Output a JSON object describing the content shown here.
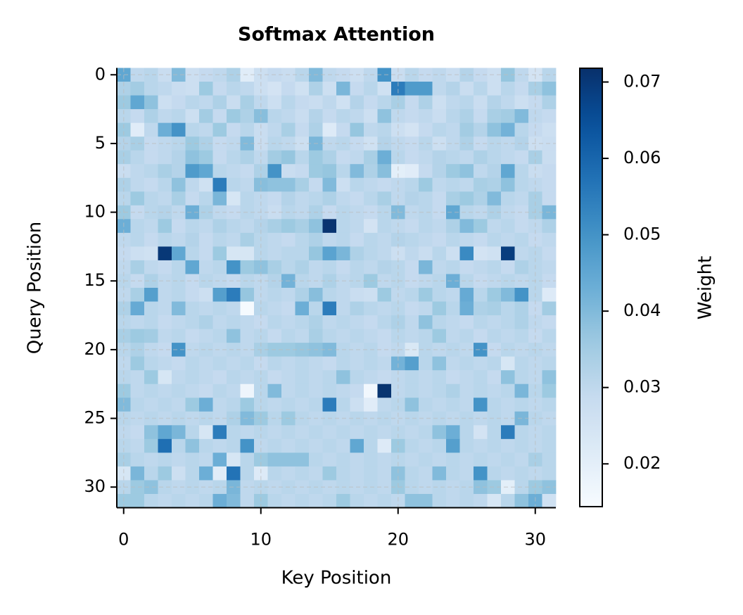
{
  "chart_data": {
    "type": "heatmap",
    "title": "Softmax Attention",
    "x_label": "Key Position",
    "y_label": "Query Position",
    "colorbar_label": "Weight",
    "colormap": "Blues",
    "xlim": [
      -0.5,
      31.5
    ],
    "ylim": [
      31.5,
      -0.5
    ],
    "xticks": [
      0,
      10,
      20,
      30
    ],
    "yticks": [
      0,
      5,
      10,
      15,
      20,
      25,
      30
    ],
    "clim": [
      0.0144,
      0.0718
    ],
    "cticks": [
      0.02,
      0.03,
      0.04,
      0.05,
      0.06,
      0.07
    ],
    "grid": true,
    "z": [
      [
        0.045,
        0.03,
        0.031,
        0.028,
        0.04,
        0.027,
        0.029,
        0.03,
        0.033,
        0.021,
        0.027,
        0.029,
        0.028,
        0.031,
        0.04,
        0.03,
        0.029,
        0.027,
        0.03,
        0.05,
        0.028,
        0.031,
        0.029,
        0.03,
        0.028,
        0.032,
        0.029,
        0.027,
        0.037,
        0.03,
        0.025,
        0.031
      ],
      [
        0.033,
        0.035,
        0.031,
        0.03,
        0.028,
        0.027,
        0.036,
        0.029,
        0.031,
        0.03,
        0.027,
        0.025,
        0.029,
        0.026,
        0.033,
        0.027,
        0.041,
        0.029,
        0.031,
        0.026,
        0.055,
        0.048,
        0.048,
        0.03,
        0.032,
        0.028,
        0.031,
        0.027,
        0.031,
        0.029,
        0.034,
        0.038
      ],
      [
        0.036,
        0.045,
        0.038,
        0.027,
        0.029,
        0.031,
        0.03,
        0.033,
        0.028,
        0.034,
        0.03,
        0.027,
        0.031,
        0.029,
        0.028,
        0.03,
        0.026,
        0.032,
        0.029,
        0.031,
        0.034,
        0.029,
        0.033,
        0.027,
        0.03,
        0.031,
        0.028,
        0.032,
        0.03,
        0.027,
        0.029,
        0.033
      ],
      [
        0.031,
        0.029,
        0.033,
        0.03,
        0.031,
        0.027,
        0.035,
        0.029,
        0.036,
        0.033,
        0.039,
        0.031,
        0.03,
        0.028,
        0.032,
        0.029,
        0.031,
        0.03,
        0.027,
        0.038,
        0.03,
        0.029,
        0.03,
        0.028,
        0.031,
        0.033,
        0.029,
        0.034,
        0.035,
        0.04,
        0.03,
        0.029
      ],
      [
        0.036,
        0.021,
        0.03,
        0.043,
        0.05,
        0.031,
        0.03,
        0.036,
        0.029,
        0.031,
        0.028,
        0.03,
        0.034,
        0.029,
        0.033,
        0.022,
        0.029,
        0.037,
        0.03,
        0.031,
        0.027,
        0.025,
        0.029,
        0.031,
        0.03,
        0.035,
        0.032,
        0.038,
        0.042,
        0.031,
        0.029,
        0.027
      ],
      [
        0.032,
        0.034,
        0.029,
        0.03,
        0.031,
        0.036,
        0.033,
        0.029,
        0.03,
        0.04,
        0.028,
        0.031,
        0.03,
        0.027,
        0.041,
        0.03,
        0.031,
        0.029,
        0.026,
        0.032,
        0.03,
        0.029,
        0.031,
        0.027,
        0.03,
        0.033,
        0.029,
        0.031,
        0.03,
        0.032,
        0.027,
        0.028
      ],
      [
        0.034,
        0.031,
        0.029,
        0.03,
        0.032,
        0.038,
        0.036,
        0.029,
        0.031,
        0.033,
        0.03,
        0.035,
        0.037,
        0.031,
        0.036,
        0.033,
        0.029,
        0.03,
        0.034,
        0.043,
        0.031,
        0.029,
        0.03,
        0.032,
        0.031,
        0.03,
        0.033,
        0.031,
        0.03,
        0.029,
        0.034,
        0.028
      ],
      [
        0.028,
        0.03,
        0.031,
        0.034,
        0.032,
        0.048,
        0.045,
        0.031,
        0.03,
        0.029,
        0.033,
        0.05,
        0.028,
        0.029,
        0.036,
        0.037,
        0.031,
        0.04,
        0.033,
        0.039,
        0.02,
        0.021,
        0.029,
        0.032,
        0.036,
        0.038,
        0.03,
        0.032,
        0.045,
        0.031,
        0.028,
        0.029
      ],
      [
        0.033,
        0.03,
        0.029,
        0.031,
        0.038,
        0.03,
        0.026,
        0.055,
        0.031,
        0.03,
        0.039,
        0.038,
        0.038,
        0.034,
        0.029,
        0.04,
        0.027,
        0.031,
        0.03,
        0.029,
        0.03,
        0.031,
        0.036,
        0.03,
        0.031,
        0.03,
        0.034,
        0.033,
        0.038,
        0.031,
        0.03,
        0.029
      ],
      [
        0.031,
        0.036,
        0.031,
        0.03,
        0.034,
        0.029,
        0.031,
        0.041,
        0.024,
        0.031,
        0.03,
        0.029,
        0.032,
        0.03,
        0.031,
        0.033,
        0.03,
        0.029,
        0.031,
        0.034,
        0.03,
        0.032,
        0.031,
        0.029,
        0.034,
        0.036,
        0.033,
        0.04,
        0.031,
        0.03,
        0.034,
        0.029
      ],
      [
        0.036,
        0.029,
        0.031,
        0.032,
        0.03,
        0.043,
        0.033,
        0.03,
        0.029,
        0.031,
        0.03,
        0.028,
        0.031,
        0.03,
        0.033,
        0.029,
        0.031,
        0.03,
        0.029,
        0.031,
        0.04,
        0.03,
        0.031,
        0.029,
        0.045,
        0.031,
        0.03,
        0.033,
        0.03,
        0.029,
        0.034,
        0.041
      ],
      [
        0.043,
        0.031,
        0.03,
        0.036,
        0.029,
        0.031,
        0.03,
        0.033,
        0.031,
        0.03,
        0.032,
        0.034,
        0.036,
        0.034,
        0.038,
        0.071,
        0.031,
        0.03,
        0.025,
        0.031,
        0.03,
        0.029,
        0.031,
        0.03,
        0.033,
        0.04,
        0.036,
        0.03,
        0.031,
        0.029,
        0.03,
        0.033
      ],
      [
        0.03,
        0.031,
        0.029,
        0.031,
        0.03,
        0.032,
        0.029,
        0.031,
        0.03,
        0.034,
        0.031,
        0.03,
        0.029,
        0.031,
        0.033,
        0.03,
        0.031,
        0.029,
        0.031,
        0.03,
        0.032,
        0.031,
        0.03,
        0.029,
        0.031,
        0.03,
        0.029,
        0.031,
        0.03,
        0.031,
        0.029,
        0.03
      ],
      [
        0.029,
        0.027,
        0.026,
        0.07,
        0.045,
        0.031,
        0.029,
        0.036,
        0.024,
        0.024,
        0.031,
        0.03,
        0.031,
        0.031,
        0.037,
        0.046,
        0.041,
        0.033,
        0.031,
        0.03,
        0.027,
        0.03,
        0.028,
        0.031,
        0.027,
        0.052,
        0.025,
        0.026,
        0.069,
        0.03,
        0.031,
        0.029
      ],
      [
        0.03,
        0.034,
        0.03,
        0.029,
        0.031,
        0.045,
        0.03,
        0.031,
        0.05,
        0.036,
        0.038,
        0.034,
        0.031,
        0.033,
        0.03,
        0.031,
        0.029,
        0.031,
        0.03,
        0.032,
        0.031,
        0.029,
        0.041,
        0.03,
        0.031,
        0.029,
        0.03,
        0.031,
        0.029,
        0.033,
        0.031,
        0.03
      ],
      [
        0.031,
        0.029,
        0.033,
        0.03,
        0.031,
        0.029,
        0.031,
        0.03,
        0.029,
        0.031,
        0.03,
        0.032,
        0.042,
        0.031,
        0.03,
        0.033,
        0.03,
        0.031,
        0.036,
        0.03,
        0.031,
        0.029,
        0.03,
        0.031,
        0.043,
        0.031,
        0.029,
        0.03,
        0.031,
        0.03,
        0.031,
        0.029
      ],
      [
        0.03,
        0.034,
        0.047,
        0.03,
        0.031,
        0.029,
        0.027,
        0.047,
        0.055,
        0.037,
        0.03,
        0.031,
        0.03,
        0.033,
        0.039,
        0.031,
        0.03,
        0.028,
        0.027,
        0.036,
        0.03,
        0.031,
        0.036,
        0.031,
        0.03,
        0.044,
        0.031,
        0.036,
        0.04,
        0.05,
        0.031,
        0.022
      ],
      [
        0.033,
        0.044,
        0.031,
        0.03,
        0.04,
        0.031,
        0.03,
        0.031,
        0.03,
        0.015,
        0.031,
        0.03,
        0.029,
        0.043,
        0.031,
        0.055,
        0.03,
        0.033,
        0.031,
        0.03,
        0.031,
        0.029,
        0.03,
        0.036,
        0.031,
        0.043,
        0.033,
        0.034,
        0.031,
        0.033,
        0.029,
        0.035
      ],
      [
        0.031,
        0.03,
        0.031,
        0.029,
        0.03,
        0.031,
        0.033,
        0.03,
        0.031,
        0.03,
        0.029,
        0.031,
        0.03,
        0.031,
        0.033,
        0.03,
        0.031,
        0.03,
        0.029,
        0.031,
        0.033,
        0.03,
        0.038,
        0.031,
        0.03,
        0.029,
        0.031,
        0.03,
        0.031,
        0.033,
        0.03,
        0.029
      ],
      [
        0.034,
        0.036,
        0.035,
        0.03,
        0.031,
        0.029,
        0.03,
        0.031,
        0.038,
        0.03,
        0.031,
        0.029,
        0.031,
        0.03,
        0.034,
        0.031,
        0.03,
        0.031,
        0.03,
        0.029,
        0.031,
        0.03,
        0.031,
        0.036,
        0.03,
        0.031,
        0.029,
        0.031,
        0.03,
        0.031,
        0.029,
        0.031
      ],
      [
        0.031,
        0.033,
        0.03,
        0.029,
        0.05,
        0.03,
        0.031,
        0.03,
        0.031,
        0.03,
        0.034,
        0.036,
        0.036,
        0.037,
        0.038,
        0.04,
        0.031,
        0.03,
        0.031,
        0.029,
        0.03,
        0.023,
        0.031,
        0.03,
        0.031,
        0.03,
        0.05,
        0.029,
        0.031,
        0.03,
        0.031,
        0.03
      ],
      [
        0.03,
        0.036,
        0.031,
        0.03,
        0.029,
        0.031,
        0.03,
        0.031,
        0.03,
        0.031,
        0.029,
        0.031,
        0.03,
        0.031,
        0.03,
        0.029,
        0.031,
        0.03,
        0.031,
        0.03,
        0.042,
        0.047,
        0.031,
        0.038,
        0.03,
        0.031,
        0.03,
        0.031,
        0.024,
        0.031,
        0.03,
        0.031
      ],
      [
        0.031,
        0.03,
        0.036,
        0.024,
        0.03,
        0.031,
        0.03,
        0.029,
        0.031,
        0.03,
        0.031,
        0.029,
        0.03,
        0.031,
        0.03,
        0.031,
        0.038,
        0.031,
        0.03,
        0.029,
        0.03,
        0.031,
        0.03,
        0.031,
        0.029,
        0.03,
        0.031,
        0.029,
        0.038,
        0.031,
        0.03,
        0.038
      ],
      [
        0.036,
        0.03,
        0.031,
        0.03,
        0.031,
        0.03,
        0.029,
        0.031,
        0.03,
        0.017,
        0.031,
        0.04,
        0.03,
        0.031,
        0.03,
        0.031,
        0.03,
        0.029,
        0.016,
        0.071,
        0.03,
        0.031,
        0.03,
        0.031,
        0.033,
        0.03,
        0.031,
        0.03,
        0.031,
        0.041,
        0.031,
        0.036
      ],
      [
        0.04,
        0.031,
        0.03,
        0.031,
        0.03,
        0.036,
        0.043,
        0.03,
        0.031,
        0.036,
        0.031,
        0.03,
        0.031,
        0.03,
        0.031,
        0.055,
        0.031,
        0.027,
        0.021,
        0.03,
        0.031,
        0.038,
        0.031,
        0.03,
        0.031,
        0.03,
        0.05,
        0.031,
        0.03,
        0.031,
        0.03,
        0.031
      ],
      [
        0.031,
        0.03,
        0.031,
        0.03,
        0.031,
        0.03,
        0.031,
        0.03,
        0.033,
        0.04,
        0.036,
        0.031,
        0.036,
        0.031,
        0.03,
        0.031,
        0.03,
        0.031,
        0.03,
        0.031,
        0.03,
        0.031,
        0.03,
        0.031,
        0.03,
        0.031,
        0.03,
        0.031,
        0.03,
        0.041,
        0.031,
        0.03
      ],
      [
        0.03,
        0.029,
        0.038,
        0.045,
        0.041,
        0.031,
        0.024,
        0.055,
        0.031,
        0.03,
        0.031,
        0.03,
        0.031,
        0.03,
        0.031,
        0.03,
        0.031,
        0.03,
        0.031,
        0.03,
        0.031,
        0.03,
        0.031,
        0.038,
        0.043,
        0.031,
        0.025,
        0.031,
        0.055,
        0.031,
        0.03,
        0.031
      ],
      [
        0.031,
        0.03,
        0.036,
        0.058,
        0.031,
        0.038,
        0.031,
        0.03,
        0.031,
        0.05,
        0.03,
        0.031,
        0.03,
        0.031,
        0.03,
        0.031,
        0.03,
        0.045,
        0.031,
        0.022,
        0.036,
        0.031,
        0.03,
        0.031,
        0.047,
        0.031,
        0.03,
        0.031,
        0.03,
        0.031,
        0.03,
        0.031
      ],
      [
        0.034,
        0.031,
        0.03,
        0.031,
        0.03,
        0.031,
        0.03,
        0.043,
        0.024,
        0.031,
        0.036,
        0.038,
        0.038,
        0.038,
        0.031,
        0.03,
        0.031,
        0.03,
        0.031,
        0.03,
        0.031,
        0.03,
        0.031,
        0.03,
        0.031,
        0.03,
        0.031,
        0.03,
        0.031,
        0.03,
        0.034,
        0.031
      ],
      [
        0.024,
        0.041,
        0.031,
        0.036,
        0.027,
        0.031,
        0.043,
        0.021,
        0.057,
        0.031,
        0.022,
        0.031,
        0.03,
        0.031,
        0.03,
        0.036,
        0.031,
        0.03,
        0.031,
        0.03,
        0.038,
        0.031,
        0.03,
        0.04,
        0.031,
        0.03,
        0.05,
        0.031,
        0.03,
        0.031,
        0.03,
        0.031
      ],
      [
        0.031,
        0.036,
        0.038,
        0.031,
        0.03,
        0.031,
        0.03,
        0.031,
        0.041,
        0.03,
        0.031,
        0.03,
        0.031,
        0.03,
        0.031,
        0.03,
        0.031,
        0.03,
        0.031,
        0.03,
        0.036,
        0.031,
        0.03,
        0.031,
        0.03,
        0.031,
        0.038,
        0.036,
        0.02,
        0.031,
        0.036,
        0.038
      ],
      [
        0.036,
        0.036,
        0.031,
        0.03,
        0.031,
        0.03,
        0.031,
        0.043,
        0.04,
        0.03,
        0.036,
        0.031,
        0.03,
        0.031,
        0.03,
        0.031,
        0.036,
        0.031,
        0.03,
        0.031,
        0.03,
        0.038,
        0.038,
        0.031,
        0.03,
        0.031,
        0.03,
        0.024,
        0.031,
        0.038,
        0.043,
        0.026
      ]
    ]
  }
}
